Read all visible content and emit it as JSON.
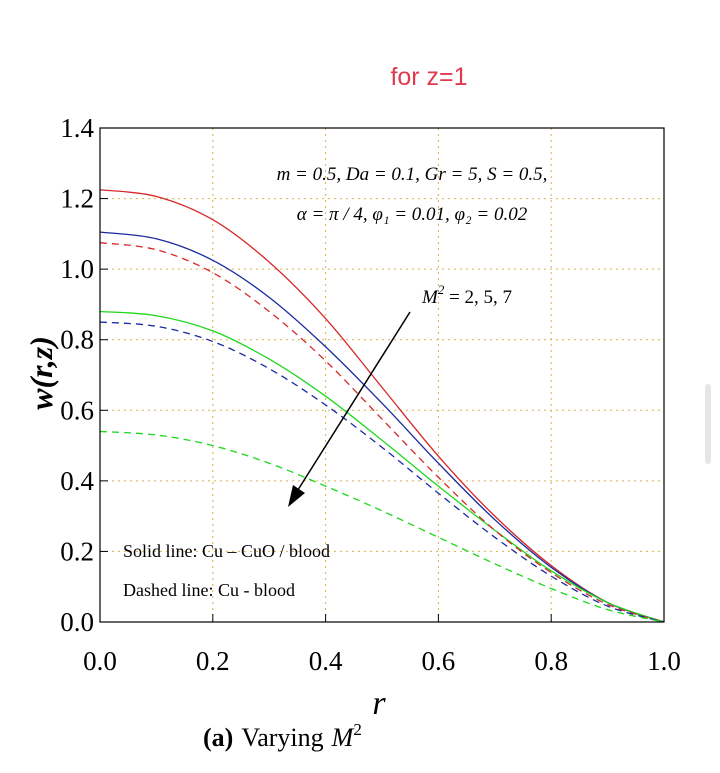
{
  "header": {
    "text": "for z=1",
    "color": "#e03a4e"
  },
  "caption": {
    "label": "(a)",
    "text": "Varying",
    "math_base": "M",
    "math_sup": "2"
  },
  "chart_data": {
    "type": "line",
    "xlabel": "r",
    "ylabel": "w(r,z)",
    "xlim": [
      0,
      1
    ],
    "ylim": [
      0,
      1.4
    ],
    "xticks": [
      "0.0",
      "0.2",
      "0.4",
      "0.6",
      "0.8",
      "1.0"
    ],
    "yticks": [
      "0.0",
      "0.2",
      "0.4",
      "0.6",
      "0.8",
      "1.0",
      "1.2",
      "1.4"
    ],
    "grid": true,
    "parameters_line1": "m = 0.5,  Da = 0.1,  Gr = 5,  S = 0.5,",
    "parameters_line2": "α = π / 4,  φ₁ = 0.01,  φ₂ = 0.02",
    "arrow_annotation": {
      "base": "M",
      "sup": "2",
      "text": " = 2,  5,  7"
    },
    "legend_solid": "Solid line: Cu – CuO / blood",
    "legend_dashed": "Dashed line: Cu - blood",
    "series": [
      {
        "color": "#d62828",
        "style": "solid",
        "x": [
          0,
          0.1,
          0.2,
          0.3,
          0.4,
          0.5,
          0.6,
          0.7,
          0.8,
          0.9,
          1.0
        ],
        "y": [
          1.225,
          1.206,
          1.14,
          1.02,
          0.86,
          0.665,
          0.47,
          0.3,
          0.16,
          0.055,
          0
        ]
      },
      {
        "color": "#1a2aa0",
        "style": "solid",
        "x": [
          0,
          0.1,
          0.2,
          0.3,
          0.4,
          0.5,
          0.6,
          0.7,
          0.8,
          0.9,
          1.0
        ],
        "y": [
          1.105,
          1.086,
          1.025,
          0.92,
          0.78,
          0.62,
          0.45,
          0.29,
          0.155,
          0.055,
          0
        ]
      },
      {
        "color": "#1ed81e",
        "style": "solid",
        "x": [
          0,
          0.1,
          0.2,
          0.3,
          0.4,
          0.5,
          0.6,
          0.7,
          0.8,
          0.9,
          1.0
        ],
        "y": [
          0.88,
          0.868,
          0.825,
          0.745,
          0.64,
          0.515,
          0.385,
          0.26,
          0.145,
          0.055,
          0
        ]
      },
      {
        "color": "#d62828",
        "style": "dashed",
        "x": [
          0,
          0.1,
          0.2,
          0.3,
          0.4,
          0.5,
          0.6,
          0.7,
          0.8,
          0.9,
          1.0
        ],
        "y": [
          1.075,
          1.055,
          0.99,
          0.88,
          0.74,
          0.575,
          0.41,
          0.26,
          0.14,
          0.05,
          0
        ]
      },
      {
        "color": "#1a2aa0",
        "style": "dashed",
        "x": [
          0,
          0.1,
          0.2,
          0.3,
          0.4,
          0.5,
          0.6,
          0.7,
          0.8,
          0.9,
          1.0
        ],
        "y": [
          0.85,
          0.838,
          0.795,
          0.718,
          0.615,
          0.495,
          0.365,
          0.24,
          0.13,
          0.045,
          0
        ]
      },
      {
        "color": "#1ed81e",
        "style": "dashed",
        "x": [
          0,
          0.1,
          0.2,
          0.3,
          0.4,
          0.5,
          0.6,
          0.7,
          0.8,
          0.9,
          1.0
        ],
        "y": [
          0.54,
          0.53,
          0.5,
          0.45,
          0.385,
          0.315,
          0.24,
          0.165,
          0.095,
          0.035,
          0
        ]
      }
    ]
  }
}
